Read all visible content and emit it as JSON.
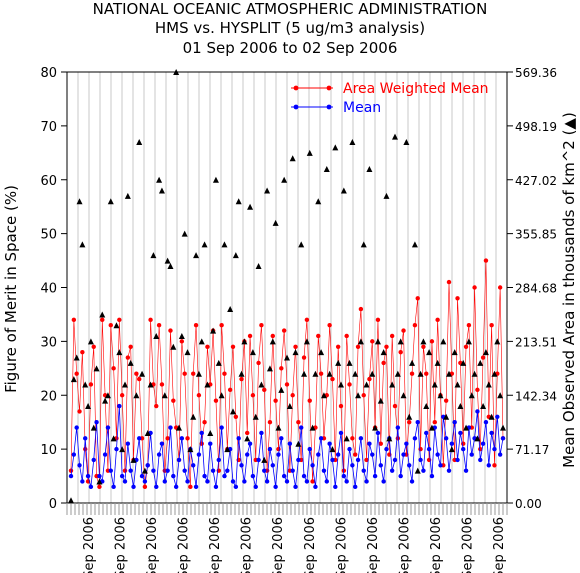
{
  "header": {
    "line1": "NATIONAL OCEANIC ATMOSPHERIC ADMINISTRATION",
    "line2": "HMS vs. HYSPLIT (5 ug/m3 analysis)",
    "line3": "01 Sep 2006 to 02 Sep 2006"
  },
  "colors": {
    "area_weighted_mean": "#ff0000",
    "mean": "#0000ff",
    "observed_area": "#000000",
    "grid": "#c8c8c8",
    "axes": "#000000"
  },
  "chart_data": {
    "type": "line",
    "title": "NATIONAL OCEANIC ATMOSPHERIC ADMINISTRATION",
    "subtitle": [
      "HMS vs. HYSPLIT (5 ug/m3 analysis)",
      "01 Sep 2006 to 02 Sep 2006"
    ],
    "ylabel": "Figure of Merit in Space (%)",
    "y2label": "Mean Observed Area in thousands of km^2 (▲)",
    "ylim": [
      0,
      80
    ],
    "y2lim": [
      0,
      569.36
    ],
    "yticks": [
      "0",
      "10",
      "20",
      "30",
      "40",
      "50",
      "60",
      "70",
      "80"
    ],
    "y2ticks": [
      "0.00",
      "71.17",
      "142.34",
      "213.51",
      "284.68",
      "355.85",
      "427.02",
      "498.19",
      "569.36"
    ],
    "xticks": [
      "Sep 2006",
      "Sep 2006",
      "Sep 2006",
      "Sep 2006",
      "Sep 2006",
      "Sep 2006",
      "Sep 2006",
      "Sep 2006",
      "Sep 2006",
      "Sep 2006",
      "Sep 2006",
      "Sep 2006",
      "Sep 2006",
      "Sep 2006"
    ],
    "grid": "vertical",
    "legend": [
      "Area Weighted Mean",
      "Mean"
    ],
    "legend_placement": "top-right",
    "series": [
      {
        "name": "Area Weighted Mean",
        "axis": "left",
        "style": "line-points",
        "values": [
          6,
          34,
          24,
          17,
          28,
          10,
          4,
          22,
          29,
          5,
          3,
          34,
          20,
          6,
          33,
          25,
          12,
          34,
          20,
          6,
          27,
          29,
          8,
          24,
          23,
          12,
          3,
          7,
          34,
          22,
          18,
          33,
          22,
          6,
          12,
          32,
          19,
          14,
          8,
          30,
          24,
          12,
          3,
          24,
          33,
          20,
          11,
          15,
          29,
          22,
          32,
          19,
          6,
          33,
          24,
          10,
          21,
          29,
          16,
          8,
          23,
          30,
          13,
          31,
          20,
          8,
          26,
          33,
          21,
          6,
          15,
          31,
          19,
          10,
          25,
          32,
          22,
          6,
          20,
          29,
          15,
          8,
          27,
          34,
          19,
          4,
          14,
          31,
          24,
          12,
          20,
          33,
          23,
          8,
          29,
          18,
          6,
          31,
          22,
          12,
          9,
          29,
          36,
          20,
          8,
          23,
          30,
          14,
          34,
          11,
          26,
          29,
          9,
          31,
          18,
          12,
          28,
          32,
          9,
          15,
          24,
          33,
          38,
          10,
          29,
          24,
          8,
          30,
          15,
          34,
          20,
          7,
          19,
          41,
          24,
          8,
          38,
          26,
          11,
          29,
          33,
          14,
          40,
          21,
          10,
          27,
          45,
          16,
          33,
          7,
          24,
          40,
          12
        ]
      },
      {
        "name": "Mean",
        "axis": "left",
        "style": "line-points",
        "values": [
          5,
          9,
          14,
          7,
          4,
          12,
          5,
          3,
          8,
          15,
          5,
          4,
          9,
          14,
          6,
          3,
          10,
          18,
          5,
          4,
          11,
          6,
          3,
          8,
          12,
          5,
          4,
          7,
          13,
          6,
          3,
          9,
          11,
          4,
          6,
          14,
          5,
          3,
          8,
          12,
          6,
          4,
          10,
          7,
          3,
          9,
          13,
          5,
          4,
          11,
          6,
          3,
          8,
          14,
          5,
          6,
          10,
          4,
          3,
          12,
          7,
          4,
          9,
          11,
          5,
          3,
          8,
          13,
          6,
          4,
          10,
          7,
          3,
          9,
          12,
          5,
          4,
          11,
          6,
          3,
          8,
          14,
          5,
          4,
          10,
          7,
          3,
          9,
          12,
          6,
          4,
          11,
          8,
          3,
          9,
          13,
          5,
          4,
          10,
          7,
          3,
          8,
          12,
          6,
          4,
          11,
          9,
          5,
          13,
          7,
          4,
          10,
          12,
          6,
          8,
          14,
          5,
          9,
          11,
          7,
          4,
          12,
          15,
          8,
          6,
          13,
          10,
          5,
          14,
          9,
          7,
          16,
          12,
          6,
          11,
          15,
          8,
          13,
          10,
          6,
          14,
          9,
          12,
          17,
          8,
          11,
          15,
          7,
          13,
          10,
          16,
          9,
          12
        ]
      },
      {
        "name": "Mean Observed Area",
        "axis": "right",
        "style": "triangles",
        "values": [
          0.5,
          23,
          27,
          56,
          48,
          22,
          18,
          30,
          14,
          25,
          4,
          35,
          19,
          20,
          56,
          12,
          33,
          28,
          10,
          22,
          57,
          26,
          8,
          20,
          67,
          24,
          6,
          13,
          22,
          46,
          31,
          60,
          58,
          20,
          45,
          44,
          29,
          80,
          14,
          31,
          50,
          28,
          10,
          16,
          46,
          24,
          30,
          48,
          22,
          13,
          32,
          60,
          26,
          20,
          48,
          10,
          36,
          17,
          46,
          56,
          24,
          30,
          12,
          55,
          28,
          16,
          44,
          22,
          8,
          58,
          25,
          30,
          52,
          14,
          21,
          60,
          27,
          18,
          64,
          28,
          11,
          48,
          24,
          30,
          65,
          14,
          24,
          56,
          28,
          20,
          62,
          24,
          10,
          66,
          26,
          22,
          58,
          12,
          26,
          67,
          24,
          20,
          30,
          48,
          22,
          62,
          24,
          14,
          30,
          19,
          28,
          57,
          12,
          22,
          68,
          24,
          30,
          20,
          67,
          16,
          26,
          48,
          6,
          24,
          30,
          18,
          28,
          14,
          22,
          26,
          20,
          30,
          16,
          24,
          10,
          28,
          22,
          18,
          26,
          14,
          30,
          20,
          24,
          12,
          26,
          18,
          28,
          22,
          16,
          24,
          30,
          20,
          14
        ]
      }
    ]
  }
}
